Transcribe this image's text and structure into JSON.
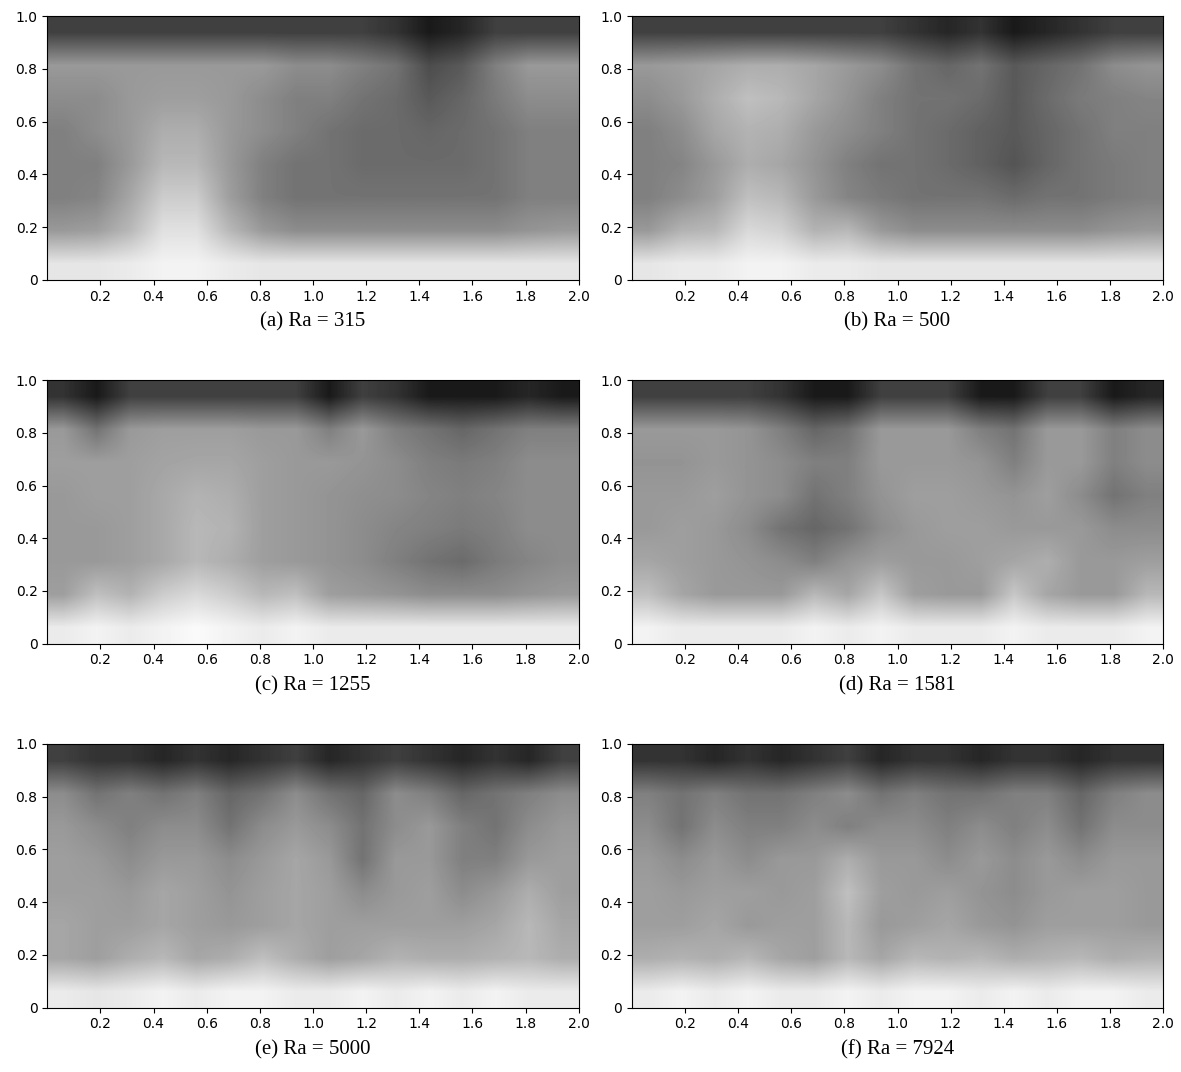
{
  "chart_data": [
    {
      "type": "heatmap",
      "xlabel": "(a) Ra = 315",
      "color": "gray",
      "value_range": [
        0,
        1
      ],
      "xlim": [
        0,
        2
      ],
      "ylim": [
        0,
        1
      ],
      "xticks": [
        0.2,
        0.4,
        0.6,
        0.8,
        {
          "value": 1,
          "label": "1.0"
        },
        1.2,
        1.4,
        1.6,
        1.8,
        {
          "value": 2,
          "label": "2.0"
        }
      ],
      "yticks": [
        0,
        0.2,
        0.4,
        0.6,
        0.8,
        {
          "value": 1,
          "label": "1.0"
        }
      ],
      "cells": [
        [
          0.25,
          0.25,
          0.25,
          0.25,
          0.25,
          0.25,
          0.25,
          0.25,
          0.25,
          0.25,
          0.2,
          0.1,
          0.15,
          0.25,
          0.25,
          0.25
        ],
        [
          0.6,
          0.6,
          0.6,
          0.6,
          0.6,
          0.6,
          0.6,
          0.55,
          0.55,
          0.5,
          0.45,
          0.3,
          0.35,
          0.5,
          0.6,
          0.6
        ],
        [
          0.55,
          0.55,
          0.6,
          0.62,
          0.62,
          0.6,
          0.55,
          0.5,
          0.5,
          0.45,
          0.42,
          0.35,
          0.4,
          0.48,
          0.55,
          0.55
        ],
        [
          0.5,
          0.55,
          0.6,
          0.68,
          0.68,
          0.6,
          0.55,
          0.5,
          0.45,
          0.42,
          0.42,
          0.4,
          0.42,
          0.45,
          0.5,
          0.5
        ],
        [
          0.5,
          0.5,
          0.6,
          0.72,
          0.72,
          0.6,
          0.5,
          0.45,
          0.45,
          0.42,
          0.42,
          0.42,
          0.42,
          0.45,
          0.5,
          0.5
        ],
        [
          0.5,
          0.52,
          0.65,
          0.8,
          0.8,
          0.62,
          0.5,
          0.45,
          0.45,
          0.45,
          0.45,
          0.45,
          0.45,
          0.45,
          0.5,
          0.5
        ],
        [
          0.6,
          0.62,
          0.72,
          0.88,
          0.88,
          0.72,
          0.6,
          0.55,
          0.55,
          0.55,
          0.55,
          0.55,
          0.55,
          0.55,
          0.58,
          0.6
        ],
        [
          0.9,
          0.9,
          0.92,
          0.95,
          0.95,
          0.92,
          0.9,
          0.9,
          0.9,
          0.9,
          0.9,
          0.9,
          0.9,
          0.9,
          0.9,
          0.9
        ]
      ]
    },
    {
      "type": "heatmap",
      "xlabel": "(b) Ra = 500",
      "color": "gray",
      "value_range": [
        0,
        1
      ],
      "xlim": [
        0,
        2
      ],
      "ylim": [
        0,
        1
      ],
      "xticks": [
        0.2,
        0.4,
        0.6,
        0.8,
        {
          "value": 1,
          "label": "1.0"
        },
        1.2,
        1.4,
        1.6,
        1.8,
        {
          "value": 2,
          "label": "2.0"
        }
      ],
      "yticks": [
        0,
        0.2,
        0.4,
        0.6,
        0.8,
        {
          "value": 1,
          "label": "1.0"
        }
      ],
      "cells": [
        [
          0.25,
          0.25,
          0.25,
          0.25,
          0.25,
          0.25,
          0.25,
          0.25,
          0.2,
          0.15,
          0.2,
          0.1,
          0.15,
          0.2,
          0.25,
          0.25
        ],
        [
          0.6,
          0.62,
          0.65,
          0.68,
          0.68,
          0.65,
          0.6,
          0.55,
          0.45,
          0.4,
          0.45,
          0.35,
          0.4,
          0.45,
          0.55,
          0.58
        ],
        [
          0.55,
          0.6,
          0.68,
          0.75,
          0.72,
          0.65,
          0.58,
          0.5,
          0.45,
          0.45,
          0.42,
          0.35,
          0.42,
          0.48,
          0.5,
          0.52
        ],
        [
          0.5,
          0.55,
          0.65,
          0.7,
          0.68,
          0.6,
          0.55,
          0.5,
          0.45,
          0.42,
          0.38,
          0.35,
          0.4,
          0.45,
          0.5,
          0.5
        ],
        [
          0.5,
          0.52,
          0.6,
          0.68,
          0.65,
          0.58,
          0.5,
          0.45,
          0.45,
          0.42,
          0.38,
          0.33,
          0.4,
          0.45,
          0.48,
          0.5
        ],
        [
          0.5,
          0.55,
          0.62,
          0.75,
          0.72,
          0.6,
          0.52,
          0.48,
          0.45,
          0.45,
          0.45,
          0.42,
          0.45,
          0.45,
          0.48,
          0.5
        ],
        [
          0.6,
          0.7,
          0.72,
          0.85,
          0.82,
          0.7,
          0.72,
          0.6,
          0.55,
          0.55,
          0.55,
          0.55,
          0.55,
          0.55,
          0.58,
          0.6
        ],
        [
          0.9,
          0.92,
          0.92,
          0.95,
          0.95,
          0.92,
          0.92,
          0.9,
          0.9,
          0.9,
          0.9,
          0.9,
          0.9,
          0.9,
          0.9,
          0.9
        ]
      ]
    },
    {
      "type": "heatmap",
      "xlabel": "(c) Ra = 1255",
      "color": "gray",
      "value_range": [
        0,
        1
      ],
      "xlim": [
        0,
        2
      ],
      "ylim": [
        0,
        1
      ],
      "xticks": [
        0.2,
        0.4,
        0.6,
        0.8,
        {
          "value": 1,
          "label": "1.0"
        },
        1.2,
        1.4,
        1.6,
        1.8,
        {
          "value": 2,
          "label": "2.0"
        }
      ],
      "yticks": [
        0,
        0.2,
        0.4,
        0.6,
        0.8,
        {
          "value": 1,
          "label": "1.0"
        }
      ],
      "cells": [
        [
          0.2,
          0.1,
          0.25,
          0.25,
          0.25,
          0.25,
          0.25,
          0.25,
          0.1,
          0.25,
          0.2,
          0.1,
          0.1,
          0.1,
          0.15,
          0.1
        ],
        [
          0.6,
          0.45,
          0.6,
          0.62,
          0.62,
          0.62,
          0.6,
          0.6,
          0.5,
          0.6,
          0.5,
          0.45,
          0.4,
          0.45,
          0.5,
          0.5
        ],
        [
          0.62,
          0.62,
          0.62,
          0.64,
          0.65,
          0.65,
          0.62,
          0.6,
          0.6,
          0.58,
          0.55,
          0.5,
          0.48,
          0.5,
          0.55,
          0.55
        ],
        [
          0.6,
          0.62,
          0.62,
          0.66,
          0.7,
          0.68,
          0.62,
          0.6,
          0.58,
          0.56,
          0.55,
          0.52,
          0.5,
          0.52,
          0.55,
          0.55
        ],
        [
          0.6,
          0.6,
          0.62,
          0.66,
          0.72,
          0.7,
          0.62,
          0.6,
          0.58,
          0.55,
          0.52,
          0.5,
          0.48,
          0.5,
          0.55,
          0.55
        ],
        [
          0.6,
          0.6,
          0.62,
          0.66,
          0.72,
          0.68,
          0.62,
          0.6,
          0.58,
          0.55,
          0.5,
          0.45,
          0.42,
          0.48,
          0.52,
          0.55
        ],
        [
          0.62,
          0.75,
          0.7,
          0.8,
          0.85,
          0.8,
          0.72,
          0.75,
          0.62,
          0.6,
          0.58,
          0.55,
          0.55,
          0.55,
          0.58,
          0.6
        ],
        [
          0.92,
          0.95,
          0.92,
          0.95,
          0.98,
          0.95,
          0.92,
          0.95,
          0.92,
          0.92,
          0.92,
          0.92,
          0.92,
          0.92,
          0.92,
          0.92
        ]
      ]
    },
    {
      "type": "heatmap",
      "xlabel": "(d) Ra = 1581",
      "color": "gray",
      "value_range": [
        0,
        1
      ],
      "xlim": [
        0,
        2
      ],
      "ylim": [
        0,
        1
      ],
      "xticks": [
        0.2,
        0.4,
        0.6,
        0.8,
        {
          "value": 1,
          "label": "1.0"
        },
        1.2,
        1.4,
        1.6,
        1.8,
        {
          "value": 2,
          "label": "2.0"
        }
      ],
      "yticks": [
        0,
        0.2,
        0.4,
        0.6,
        0.8,
        {
          "value": 1,
          "label": "1.0"
        }
      ],
      "cells": [
        [
          0.25,
          0.25,
          0.25,
          0.25,
          0.2,
          0.1,
          0.1,
          0.25,
          0.25,
          0.25,
          0.1,
          0.1,
          0.25,
          0.25,
          0.1,
          0.15
        ],
        [
          0.6,
          0.6,
          0.6,
          0.58,
          0.5,
          0.4,
          0.45,
          0.6,
          0.6,
          0.6,
          0.5,
          0.45,
          0.6,
          0.6,
          0.5,
          0.55
        ],
        [
          0.58,
          0.58,
          0.6,
          0.58,
          0.55,
          0.5,
          0.5,
          0.6,
          0.6,
          0.6,
          0.58,
          0.5,
          0.6,
          0.6,
          0.5,
          0.55
        ],
        [
          0.6,
          0.6,
          0.62,
          0.58,
          0.55,
          0.45,
          0.5,
          0.58,
          0.62,
          0.62,
          0.6,
          0.58,
          0.62,
          0.55,
          0.45,
          0.5
        ],
        [
          0.6,
          0.62,
          0.6,
          0.55,
          0.45,
          0.4,
          0.45,
          0.55,
          0.6,
          0.62,
          0.62,
          0.6,
          0.6,
          0.6,
          0.55,
          0.55
        ],
        [
          0.65,
          0.62,
          0.6,
          0.58,
          0.55,
          0.5,
          0.58,
          0.62,
          0.6,
          0.6,
          0.62,
          0.65,
          0.68,
          0.6,
          0.6,
          0.62
        ],
        [
          0.75,
          0.65,
          0.6,
          0.6,
          0.6,
          0.72,
          0.65,
          0.78,
          0.62,
          0.6,
          0.6,
          0.78,
          0.65,
          0.6,
          0.6,
          0.72
        ],
        [
          0.95,
          0.92,
          0.92,
          0.92,
          0.92,
          0.95,
          0.92,
          0.95,
          0.92,
          0.92,
          0.92,
          0.95,
          0.92,
          0.92,
          0.92,
          0.95
        ]
      ]
    },
    {
      "type": "heatmap",
      "xlabel": "(e) Ra = 5000",
      "color": "gray",
      "value_range": [
        0,
        1
      ],
      "xlim": [
        0,
        2
      ],
      "ylim": [
        0,
        1
      ],
      "xticks": [
        0.2,
        0.4,
        0.6,
        0.8,
        {
          "value": 1,
          "label": "1.0"
        },
        1.2,
        1.4,
        1.6,
        1.8,
        {
          "value": 2,
          "label": "2.0"
        }
      ],
      "yticks": [
        0,
        0.2,
        0.4,
        0.6,
        0.8,
        {
          "value": 1,
          "label": "1.0"
        }
      ],
      "cells": [
        [
          0.25,
          0.2,
          0.2,
          0.15,
          0.2,
          0.15,
          0.2,
          0.25,
          0.15,
          0.2,
          0.25,
          0.2,
          0.15,
          0.2,
          0.15,
          0.25
        ],
        [
          0.55,
          0.45,
          0.5,
          0.45,
          0.5,
          0.4,
          0.45,
          0.55,
          0.45,
          0.4,
          0.55,
          0.5,
          0.4,
          0.45,
          0.5,
          0.55
        ],
        [
          0.6,
          0.55,
          0.5,
          0.55,
          0.55,
          0.45,
          0.55,
          0.6,
          0.55,
          0.45,
          0.55,
          0.6,
          0.5,
          0.45,
          0.55,
          0.6
        ],
        [
          0.62,
          0.6,
          0.55,
          0.6,
          0.6,
          0.55,
          0.6,
          0.65,
          0.6,
          0.45,
          0.6,
          0.6,
          0.5,
          0.5,
          0.6,
          0.62
        ],
        [
          0.62,
          0.62,
          0.6,
          0.65,
          0.62,
          0.58,
          0.62,
          0.65,
          0.62,
          0.55,
          0.6,
          0.62,
          0.55,
          0.6,
          0.68,
          0.62
        ],
        [
          0.65,
          0.62,
          0.62,
          0.65,
          0.62,
          0.6,
          0.62,
          0.65,
          0.62,
          0.62,
          0.62,
          0.62,
          0.62,
          0.65,
          0.72,
          0.65
        ],
        [
          0.65,
          0.62,
          0.68,
          0.72,
          0.65,
          0.68,
          0.75,
          0.68,
          0.62,
          0.65,
          0.7,
          0.68,
          0.68,
          0.7,
          0.72,
          0.68
        ],
        [
          0.92,
          0.9,
          0.92,
          0.95,
          0.92,
          0.95,
          0.95,
          0.92,
          0.92,
          0.95,
          0.92,
          0.95,
          0.92,
          0.95,
          0.92,
          0.92
        ]
      ]
    },
    {
      "type": "heatmap",
      "xlabel": "(f) Ra = 7924",
      "color": "gray",
      "value_range": [
        0,
        1
      ],
      "xlim": [
        0,
        2
      ],
      "ylim": [
        0,
        1
      ],
      "xticks": [
        0.2,
        0.4,
        0.6,
        0.8,
        {
          "value": 1,
          "label": "1.0"
        },
        1.2,
        1.4,
        1.6,
        1.8,
        {
          "value": 2,
          "label": "2.0"
        }
      ],
      "yticks": [
        0,
        0.2,
        0.4,
        0.6,
        0.8,
        {
          "value": 1,
          "label": "1.0"
        }
      ],
      "cells": [
        [
          0.2,
          0.2,
          0.15,
          0.2,
          0.15,
          0.2,
          0.25,
          0.15,
          0.2,
          0.2,
          0.15,
          0.2,
          0.2,
          0.15,
          0.2,
          0.2
        ],
        [
          0.5,
          0.45,
          0.5,
          0.45,
          0.45,
          0.5,
          0.55,
          0.45,
          0.5,
          0.45,
          0.45,
          0.5,
          0.5,
          0.4,
          0.5,
          0.55
        ],
        [
          0.55,
          0.45,
          0.55,
          0.5,
          0.5,
          0.55,
          0.5,
          0.55,
          0.55,
          0.5,
          0.55,
          0.5,
          0.55,
          0.45,
          0.55,
          0.55
        ],
        [
          0.6,
          0.55,
          0.6,
          0.55,
          0.6,
          0.6,
          0.68,
          0.6,
          0.6,
          0.55,
          0.6,
          0.55,
          0.6,
          0.55,
          0.6,
          0.6
        ],
        [
          0.62,
          0.6,
          0.62,
          0.62,
          0.6,
          0.62,
          0.75,
          0.62,
          0.6,
          0.62,
          0.58,
          0.55,
          0.6,
          0.62,
          0.62,
          0.6
        ],
        [
          0.62,
          0.62,
          0.65,
          0.6,
          0.62,
          0.62,
          0.72,
          0.6,
          0.62,
          0.65,
          0.6,
          0.58,
          0.62,
          0.62,
          0.62,
          0.6
        ],
        [
          0.68,
          0.7,
          0.68,
          0.72,
          0.65,
          0.62,
          0.72,
          0.65,
          0.72,
          0.7,
          0.72,
          0.68,
          0.7,
          0.72,
          0.68,
          0.7
        ],
        [
          0.92,
          0.95,
          0.92,
          0.95,
          0.92,
          0.92,
          0.95,
          0.92,
          0.95,
          0.95,
          0.92,
          0.95,
          0.92,
          0.95,
          0.95,
          0.92
        ]
      ]
    }
  ]
}
